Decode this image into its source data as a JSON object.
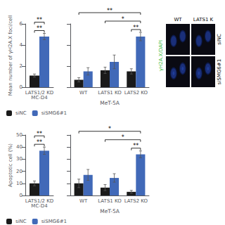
{
  "chart_data": [
    {
      "type": "bar",
      "categories": [
        "LATS1/2 KD\nMC-D4"
      ],
      "series": [
        {
          "name": "siNC",
          "color": "#1a1a1a",
          "values": [
            1.1
          ],
          "errors": [
            0.15
          ]
        },
        {
          "name": "siSMG6#1",
          "color": "#4169b8",
          "values": [
            4.8
          ],
          "errors": [
            0.3
          ]
        }
      ],
      "ylabel": "Mean number of γH2A.X foci/cell",
      "ylim": [
        0,
        6
      ],
      "yticks": [
        0,
        2,
        4,
        6
      ],
      "grid": false,
      "legend": "bottom",
      "annotations": [
        {
          "text": "**",
          "from": {
            "category": "LATS1/2 KD\nMC-D4",
            "series": "siNC"
          },
          "to": {
            "category": "LATS1/2 KD\nMC-D4",
            "series": "siSMG6#1"
          }
        },
        {
          "text": "**",
          "from": {
            "category": "LATS1/2 KD\nMC-D4",
            "series": "siNC"
          },
          "to": {
            "category": "LATS1/2 KD\nMC-D4",
            "series": "siSMG6#1"
          }
        }
      ]
    },
    {
      "type": "bar",
      "categories": [
        "WT",
        "LATS1 KO",
        "LATS2 KO"
      ],
      "series": [
        {
          "name": "siNC",
          "color": "#1a1a1a",
          "values": [
            0.7,
            1.6,
            1.5
          ],
          "errors": [
            0.2,
            0.3,
            0.25
          ]
        },
        {
          "name": "siSMG6#1",
          "color": "#4169b8",
          "values": [
            1.5,
            2.4,
            4.8
          ],
          "errors": [
            0.35,
            0.65,
            0.4
          ]
        }
      ],
      "xlabel": "MeT-5A",
      "ylim": [
        0,
        6
      ],
      "yticks": [
        0,
        2,
        4,
        6
      ],
      "grid": false,
      "tick_labels": "x",
      "annotations": [
        {
          "text": "**",
          "from": {
            "category": "WT",
            "series": "siNC"
          },
          "to": {
            "category": "LATS2 KO",
            "series": "siSMG6#1"
          }
        },
        {
          "text": "*",
          "from": {
            "category": "LATS1 KO",
            "series": "siNC"
          },
          "to": {
            "category": "LATS2 KO",
            "series": "siSMG6#1"
          }
        },
        {
          "text": "**",
          "from": {
            "category": "LATS2 KO",
            "series": "siNC"
          },
          "to": {
            "category": "LATS2 KO",
            "series": "siSMG6#1"
          }
        }
      ]
    },
    {
      "type": "image",
      "categories": [
        "WT",
        "LATS1 K"
      ],
      "annotations": [
        "siNC",
        "siSMG6#1"
      ],
      "ylabel": "γH2A.X/DAPI",
      "color": "#44bb44"
    },
    {
      "type": "bar",
      "categories": [
        "LATS1/2 KD\nMC-D4"
      ],
      "series": [
        {
          "name": "siNC",
          "color": "#1a1a1a",
          "values": [
            10.0
          ],
          "errors": [
            2.0
          ]
        },
        {
          "name": "siSMG6#1",
          "color": "#4169b8",
          "values": [
            37.0
          ],
          "errors": [
            3.0
          ]
        }
      ],
      "ylabel": "Apoptotic cell (%)",
      "ylim": [
        0,
        50
      ],
      "yticks": [
        0,
        10,
        20,
        30,
        40,
        50
      ],
      "grid": false,
      "legend": "bottom",
      "annotations": [
        {
          "text": "**",
          "from": {
            "category": "LATS1/2 KD\nMC-D4",
            "series": "siNC"
          },
          "to": {
            "category": "LATS1/2 KD\nMC-D4",
            "series": "siSMG6#1"
          }
        },
        {
          "text": "**",
          "from": {
            "category": "LATS1/2 KD\nMC-D4",
            "series": "siNC"
          },
          "to": {
            "category": "LATS1/2 KD\nMC-D4",
            "series": "siSMG6#1"
          }
        }
      ]
    },
    {
      "type": "bar",
      "categories": [
        "WT",
        "LATS1 KO",
        "LATS2 KO"
      ],
      "series": [
        {
          "name": "siNC",
          "color": "#1a1a1a",
          "values": [
            10.0,
            6.5,
            3.0
          ],
          "errors": [
            3.5,
            2.5,
            1.2
          ]
        },
        {
          "name": "siSMG6#1",
          "color": "#4169b8",
          "values": [
            17.0,
            14.5,
            34.0
          ],
          "errors": [
            4.5,
            3.5,
            2.8
          ]
        }
      ],
      "xlabel": "MeT-5A",
      "ylim": [
        0,
        50
      ],
      "yticks": [
        0,
        10,
        20,
        30,
        40,
        50
      ],
      "grid": false,
      "tick_labels": "x",
      "annotations": [
        {
          "text": "*",
          "from": {
            "category": "WT",
            "series": "siNC"
          },
          "to": {
            "category": "LATS2 KO",
            "series": "siSMG6#1"
          }
        },
        {
          "text": "*",
          "from": {
            "category": "LATS1 KO",
            "series": "siNC"
          },
          "to": {
            "category": "LATS2 KO",
            "series": "siSMG6#1"
          }
        },
        {
          "text": "**",
          "from": {
            "category": "LATS2 KO",
            "series": "siNC"
          },
          "to": {
            "category": "LATS2 KO",
            "series": "siSMG6#1"
          }
        }
      ]
    }
  ]
}
